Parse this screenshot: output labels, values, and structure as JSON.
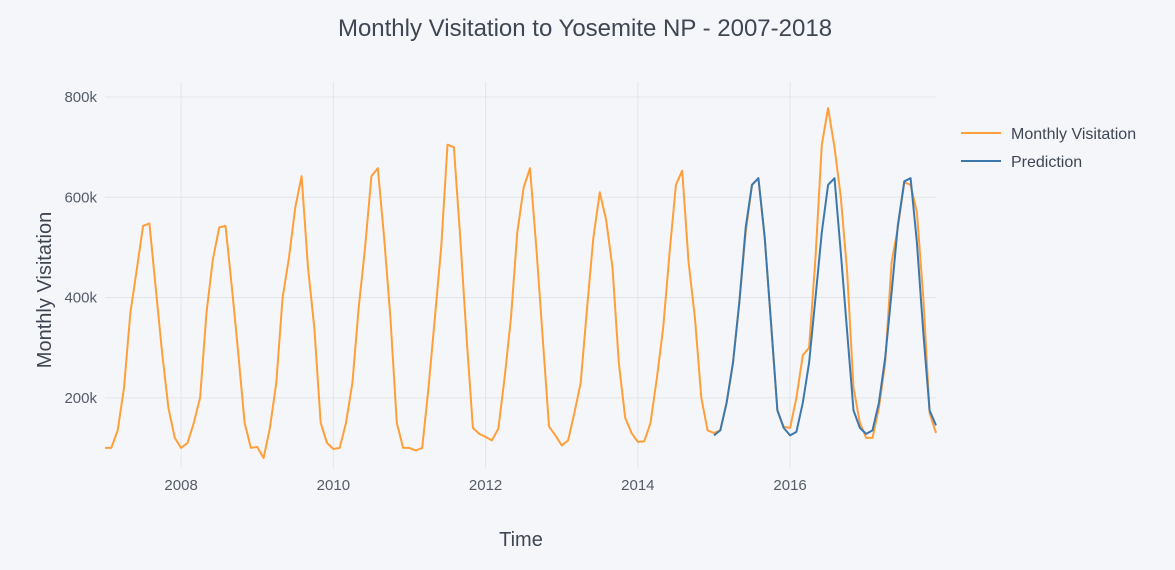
{
  "chart_data": {
    "type": "line",
    "title": "Monthly Visitation to Yosemite NP - 2007-2018",
    "xlabel": "Time",
    "ylabel": "Monthly Visitation",
    "xlim": [
      2007.0,
      2017.917
    ],
    "ylim": [
      60000,
      830000
    ],
    "x_tick_values": [
      2008,
      2010,
      2012,
      2014,
      2016
    ],
    "x_tick_labels": [
      "2008",
      "2010",
      "2012",
      "2014",
      "2016"
    ],
    "y_tick_values": [
      200000,
      400000,
      600000,
      800000
    ],
    "y_tick_labels": [
      "200k",
      "400k",
      "600k",
      "800k"
    ],
    "grid": true,
    "legend_position": "top-right",
    "colors": {
      "actual": "#ff9f3a",
      "prediction": "#3d78ad"
    },
    "series": [
      {
        "name": "Monthly Visitation",
        "start_year": 2007,
        "start_month": 1,
        "values": [
          100000,
          100000,
          135000,
          220000,
          370000,
          455000,
          543000,
          548000,
          420000,
          290000,
          180000,
          120000,
          100000,
          110000,
          150000,
          200000,
          370000,
          475000,
          540000,
          543000,
          420000,
          290000,
          150000,
          100000,
          102000,
          80000,
          140000,
          230000,
          400000,
          480000,
          580000,
          642000,
          460000,
          340000,
          150000,
          110000,
          98000,
          100000,
          150000,
          230000,
          380000,
          500000,
          642000,
          658000,
          520000,
          360000,
          150000,
          100000,
          100000,
          95000,
          100000,
          220000,
          360000,
          500000,
          705000,
          700000,
          520000,
          320000,
          140000,
          128000,
          122000,
          115000,
          138000,
          240000,
          360000,
          530000,
          620000,
          658000,
          500000,
          320000,
          143000,
          125000,
          105000,
          115000,
          170000,
          230000,
          380000,
          520000,
          610000,
          555000,
          460000,
          270000,
          160000,
          130000,
          112000,
          113000,
          150000,
          240000,
          340000,
          490000,
          625000,
          653000,
          470000,
          360000,
          200000,
          135000,
          130000,
          135000,
          190000,
          270000,
          390000,
          530000,
          625000,
          638000,
          520000,
          350000,
          175000,
          142000,
          140000,
          200000,
          285000,
          300000,
          480000,
          705000,
          778000,
          700000,
          600000,
          450000,
          220000,
          150000,
          120000,
          120000,
          180000,
          270000,
          470000,
          540000,
          630000,
          625000,
          570000,
          400000,
          170000,
          130000
        ]
      },
      {
        "name": "Prediction",
        "start_year": 2015,
        "start_month": 1,
        "values": [
          125000,
          135000,
          190000,
          270000,
          390000,
          540000,
          625000,
          638000,
          520000,
          350000,
          175000,
          140000,
          125000,
          132000,
          190000,
          270000,
          400000,
          530000,
          625000,
          638000,
          490000,
          330000,
          175000,
          140000,
          128000,
          135000,
          190000,
          280000,
          410000,
          545000,
          632000,
          638000,
          510000,
          330000,
          175000,
          145000
        ]
      }
    ]
  }
}
